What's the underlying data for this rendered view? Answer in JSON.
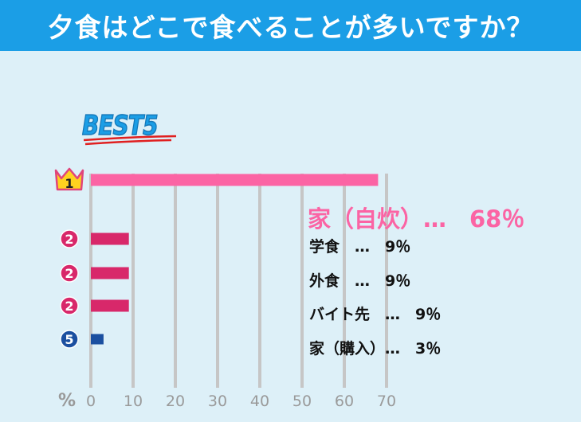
{
  "title": "夕食はどこで食べることが多いですか？",
  "badge": "BEST5",
  "chart_data": {
    "type": "bar",
    "orientation": "horizontal",
    "categories": [
      "家（自炊）",
      "学食",
      "外食",
      "バイト先",
      "家（購入）"
    ],
    "values": [
      68,
      9,
      9,
      9,
      3
    ],
    "ranks": [
      "1",
      "2",
      "2",
      "2",
      "5"
    ],
    "value_labels": [
      "68%",
      "9%",
      "9%",
      "9%",
      "3%"
    ],
    "xlabel": "%",
    "xlim": [
      0,
      70
    ],
    "xticks": [
      "0",
      "10",
      "20",
      "30",
      "40",
      "50",
      "60",
      "70"
    ],
    "grid": true,
    "colors": {
      "top_bar": "#fb64a4",
      "mid_bar": "#d8286a",
      "low_bar": "#1b4fa0",
      "top_label": "#fb64a4"
    }
  },
  "labels": [
    {
      "text": "家（自炊）…　68％"
    },
    {
      "text": "学食　…　9％"
    },
    {
      "text": "外食　…　9％"
    },
    {
      "text": "バイト先　…　9％"
    },
    {
      "text": "家（購入）…　3％"
    }
  ],
  "axis_unit": "%"
}
